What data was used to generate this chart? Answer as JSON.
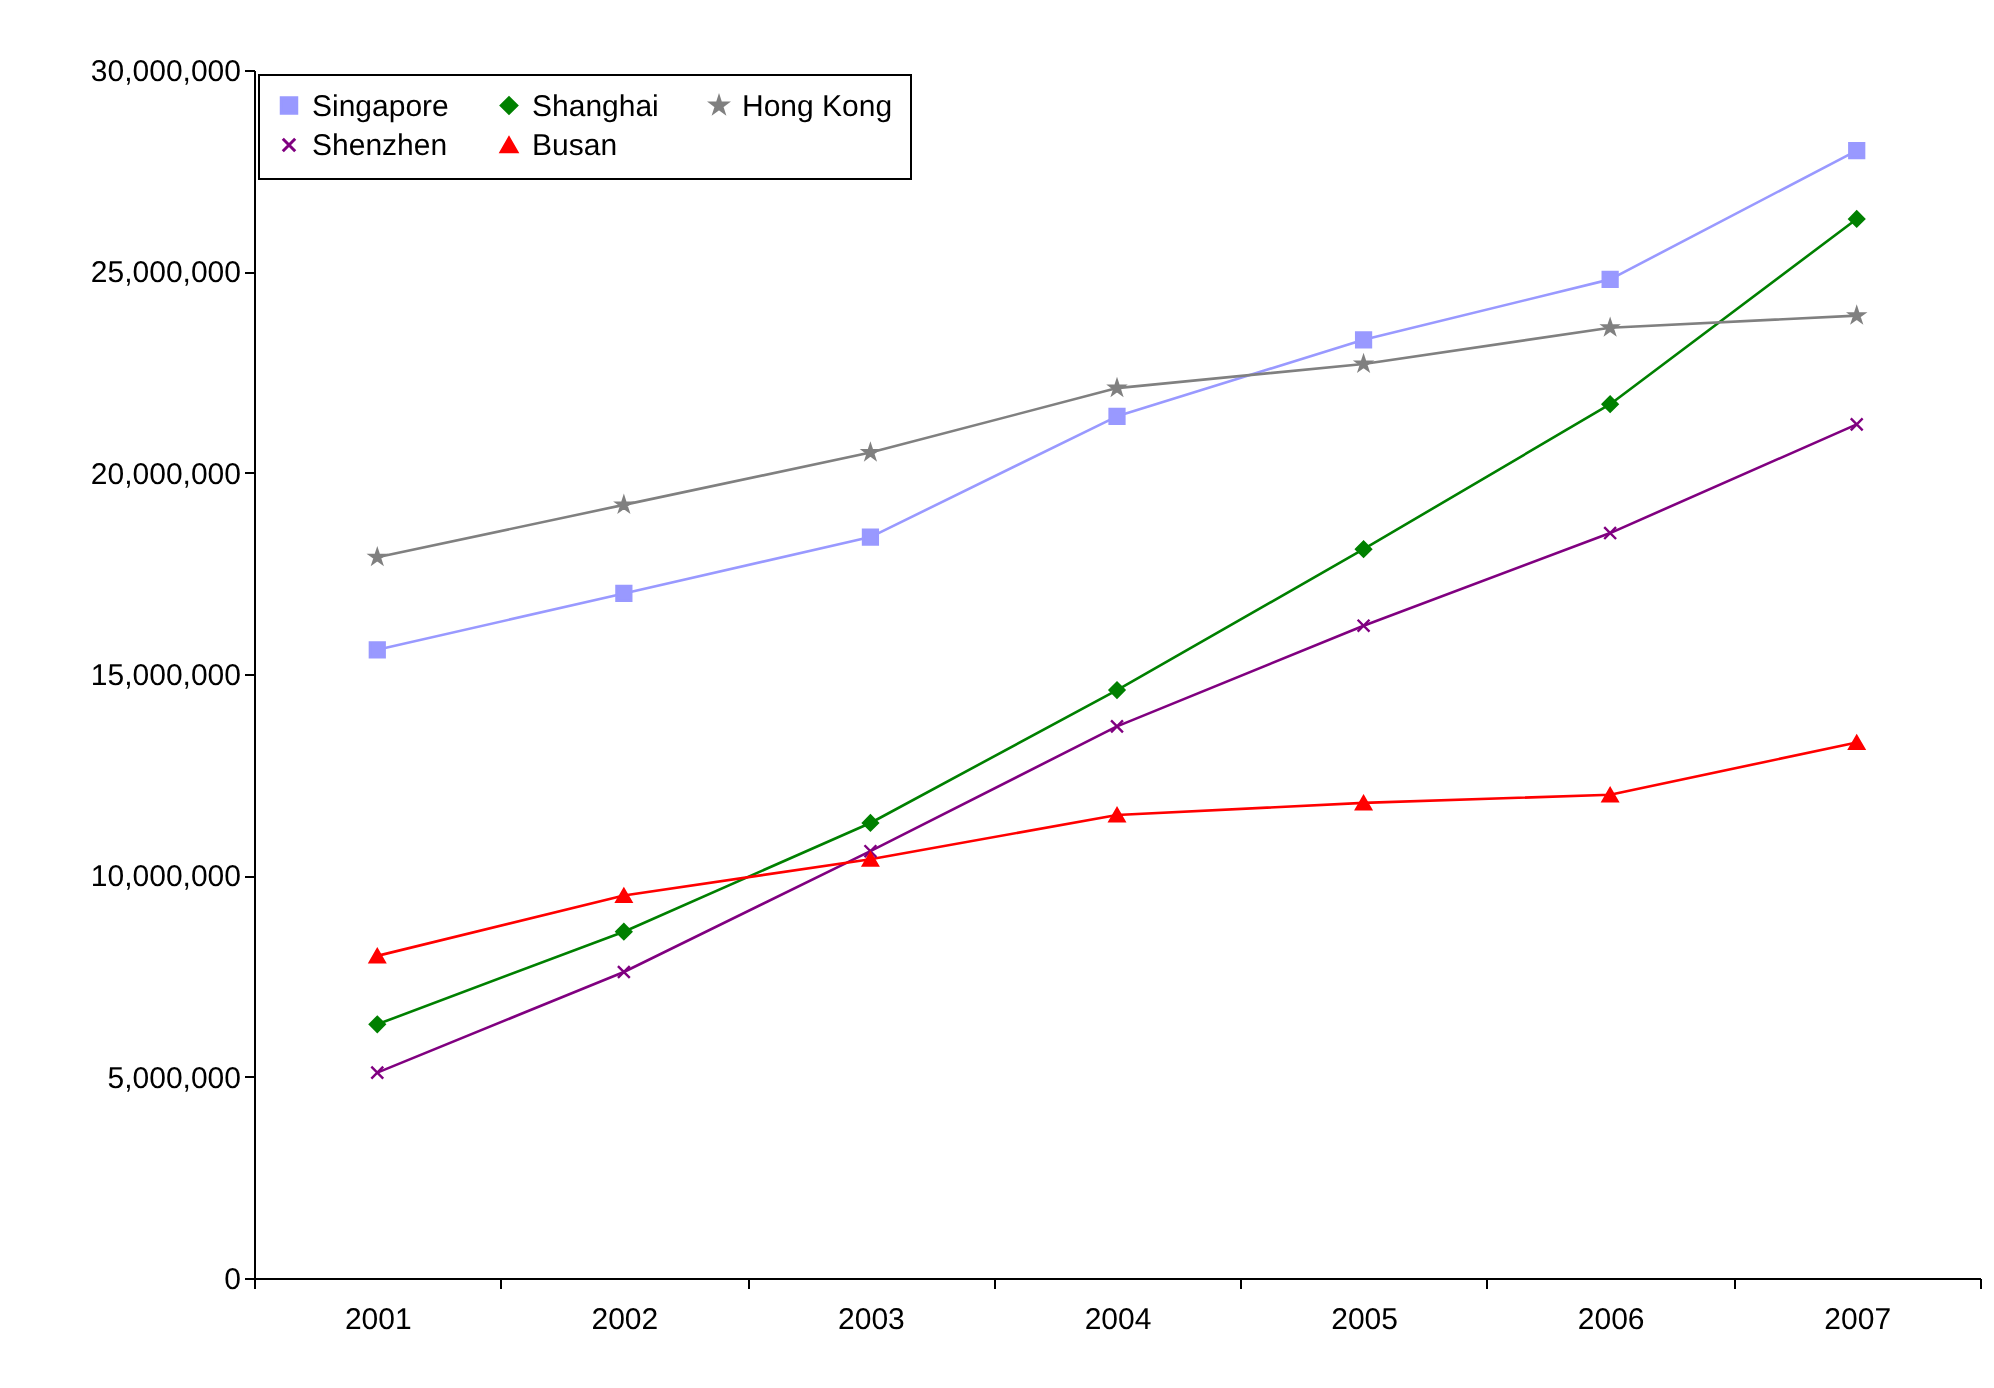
{
  "chart_data": {
    "type": "line",
    "categories": [
      "2001",
      "2002",
      "2003",
      "2004",
      "2005",
      "2006",
      "2007"
    ],
    "ylim": [
      0,
      30000000
    ],
    "yticks": [
      {
        "value": 0,
        "label": "0"
      },
      {
        "value": 5000000,
        "label": "5,000,000"
      },
      {
        "value": 10000000,
        "label": "10,000,000"
      },
      {
        "value": 15000000,
        "label": "15,000,000"
      },
      {
        "value": 20000000,
        "label": "20,000,000"
      },
      {
        "value": 25000000,
        "label": "25,000,000"
      },
      {
        "value": 30000000,
        "label": "30,000,000"
      }
    ],
    "legend": "top left",
    "series": [
      {
        "name": "Singapore",
        "color": "#9999ff",
        "marker": "square",
        "values": [
          15600000,
          17000000,
          18400000,
          21400000,
          23300000,
          24800000,
          28000000
        ]
      },
      {
        "name": "Shanghai",
        "color": "#008000",
        "marker": "diamond",
        "values": [
          6300000,
          8600000,
          11300000,
          14600000,
          18100000,
          21700000,
          26300000
        ]
      },
      {
        "name": "Hong Kong",
        "color": "#808080",
        "marker": "star",
        "values": [
          17900000,
          19200000,
          20500000,
          22100000,
          22700000,
          23600000,
          23900000
        ]
      },
      {
        "name": "Shenzhen",
        "color": "#800080",
        "marker": "cross",
        "values": [
          5100000,
          7600000,
          10600000,
          13700000,
          16200000,
          18500000,
          21200000
        ]
      },
      {
        "name": "Busan",
        "color": "#ff0000",
        "marker": "triangle",
        "values": [
          8000000,
          9500000,
          10400000,
          11500000,
          11800000,
          12000000,
          13300000
        ]
      }
    ]
  }
}
